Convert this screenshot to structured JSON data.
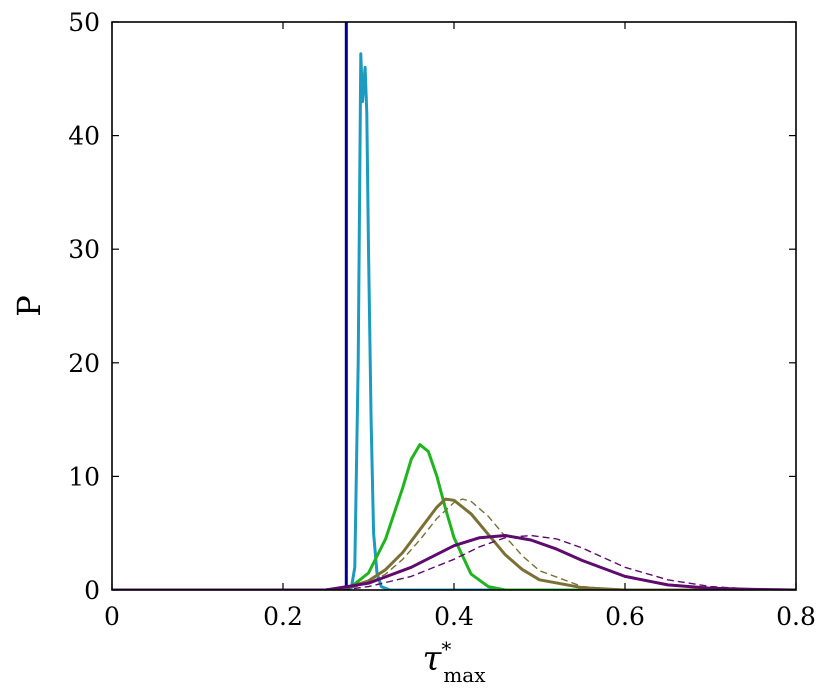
{
  "chart_data": {
    "type": "line",
    "title": "",
    "xlabel": "τ*max",
    "xlabel_parts": {
      "base": "τ",
      "sup": "*",
      "sub": "max"
    },
    "ylabel": "P",
    "xlim": [
      0,
      0.8
    ],
    "ylim": [
      0,
      50
    ],
    "xticks": [
      0,
      0.2,
      0.4,
      0.6,
      0.8
    ],
    "xtick_labels": [
      "0",
      "0.2",
      "0.4",
      "0.6",
      "0.8"
    ],
    "yticks": [
      0,
      10,
      20,
      30,
      40,
      50
    ],
    "ytick_labels": [
      "0",
      "10",
      "20",
      "30",
      "40",
      "50"
    ],
    "grid": false,
    "legend": "none",
    "series": [
      {
        "color": "#00008b",
        "style": "solid",
        "x": [
          0.274,
          0.274
        ],
        "y": [
          0,
          50
        ]
      },
      {
        "color": "#1a9bbf",
        "style": "solid",
        "x": [
          0.27,
          0.28,
          0.284,
          0.288,
          0.291,
          0.293,
          0.296,
          0.298,
          0.3,
          0.303,
          0.306,
          0.31,
          0.315,
          0.325,
          0.8
        ],
        "y": [
          0,
          0.2,
          2,
          20,
          47.2,
          43,
          46,
          42,
          30,
          15,
          5,
          1.5,
          0.3,
          0,
          0
        ]
      },
      {
        "color": "#1a9bbf",
        "style": "dashed",
        "x": [
          0.27,
          0.28,
          0.284,
          0.288,
          0.291,
          0.293,
          0.296,
          0.298,
          0.3,
          0.303,
          0.306,
          0.31,
          0.315,
          0.325
        ],
        "y": [
          0,
          0.2,
          2,
          19,
          46,
          45,
          45.5,
          43,
          31,
          16,
          5.5,
          1.6,
          0.3,
          0
        ]
      },
      {
        "color": "#1fb51f",
        "style": "solid",
        "x": [
          0,
          0.25,
          0.28,
          0.3,
          0.32,
          0.34,
          0.35,
          0.36,
          0.37,
          0.38,
          0.39,
          0.4,
          0.42,
          0.44,
          0.46,
          0.8
        ],
        "y": [
          0,
          0,
          0.3,
          1.5,
          4.5,
          9.0,
          11.5,
          12.8,
          12.2,
          10,
          7.2,
          4.6,
          1.4,
          0.3,
          0,
          0
        ]
      },
      {
        "color": "#7a7034",
        "style": "solid",
        "x": [
          0,
          0.25,
          0.28,
          0.3,
          0.32,
          0.34,
          0.36,
          0.38,
          0.39,
          0.4,
          0.42,
          0.44,
          0.46,
          0.48,
          0.5,
          0.55,
          0.6,
          0.8
        ],
        "y": [
          0,
          0,
          0.3,
          0.8,
          1.8,
          3.3,
          5.3,
          7.3,
          8.0,
          7.9,
          6.7,
          4.9,
          3.1,
          1.8,
          0.9,
          0.2,
          0,
          0
        ]
      },
      {
        "color": "#7a7034",
        "style": "dashed",
        "x": [
          0.28,
          0.3,
          0.32,
          0.34,
          0.36,
          0.38,
          0.4,
          0.41,
          0.42,
          0.44,
          0.46,
          0.48,
          0.5,
          0.55,
          0.6
        ],
        "y": [
          0.2,
          0.6,
          1.4,
          2.7,
          4.4,
          6.3,
          7.7,
          8.0,
          7.8,
          6.5,
          4.7,
          3.0,
          1.7,
          0.3,
          0
        ]
      },
      {
        "color": "#5e0a6e",
        "style": "solid",
        "x": [
          0,
          0.25,
          0.3,
          0.35,
          0.4,
          0.43,
          0.46,
          0.49,
          0.52,
          0.55,
          0.6,
          0.65,
          0.7,
          0.75,
          0.8
        ],
        "y": [
          0,
          0,
          0.6,
          2.0,
          3.9,
          4.6,
          4.8,
          4.4,
          3.6,
          2.6,
          1.2,
          0.45,
          0.15,
          0.05,
          0
        ]
      },
      {
        "color": "#5e0a6e",
        "style": "dashed",
        "x": [
          0.27,
          0.3,
          0.35,
          0.4,
          0.43,
          0.46,
          0.49,
          0.52,
          0.55,
          0.6,
          0.65,
          0.7,
          0.75,
          0.8
        ],
        "y": [
          0,
          0.3,
          1.2,
          2.7,
          3.8,
          4.6,
          4.8,
          4.5,
          3.7,
          2.0,
          0.9,
          0.3,
          0.08,
          0
        ]
      }
    ]
  }
}
